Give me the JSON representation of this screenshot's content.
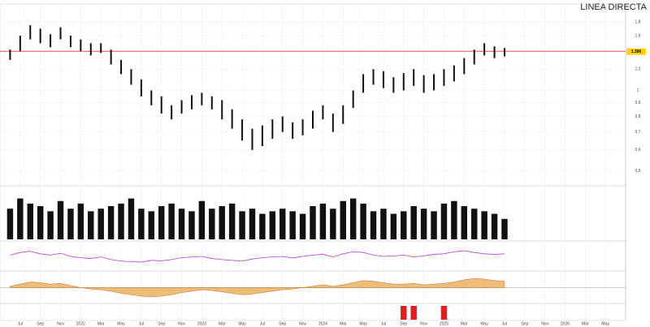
{
  "chart_data": [
    {
      "type": "ohlc",
      "title": "LINEA DIRECTA",
      "log_scale": true,
      "ylim": [
        0.45,
        2.0
      ],
      "yticks": [
        0.5,
        0.6,
        0.7,
        0.8,
        0.9,
        1,
        1.2,
        1.4,
        1.6,
        1.8
      ],
      "xlim": [
        -1,
        61
      ],
      "xticks": [
        {
          "value": 1,
          "label": "Jul"
        },
        {
          "value": 3,
          "label": "Sep"
        },
        {
          "value": 5,
          "label": "Nov"
        },
        {
          "value": 7,
          "label": "2022"
        },
        {
          "value": 9,
          "label": "Mar"
        },
        {
          "value": 11,
          "label": "May"
        },
        {
          "value": 13,
          "label": "Jul"
        },
        {
          "value": 15,
          "label": "Sep"
        },
        {
          "value": 17,
          "label": "Nov"
        },
        {
          "value": 19,
          "label": "2023"
        },
        {
          "value": 21,
          "label": "Mar"
        },
        {
          "value": 23,
          "label": "May"
        },
        {
          "value": 25,
          "label": "Jul"
        },
        {
          "value": 27,
          "label": "Sep"
        },
        {
          "value": 29,
          "label": "Nov"
        },
        {
          "value": 31,
          "label": "2024"
        },
        {
          "value": 33,
          "label": "Mar"
        },
        {
          "value": 35,
          "label": "May"
        },
        {
          "value": 37,
          "label": "Jul"
        },
        {
          "value": 39,
          "label": "Sep"
        },
        {
          "value": 41,
          "label": "Nov"
        },
        {
          "value": 43,
          "label": "2025"
        },
        {
          "value": 45,
          "label": "Mar"
        },
        {
          "value": 47,
          "label": "May"
        },
        {
          "value": 49,
          "label": "Jul"
        },
        {
          "value": 51,
          "label": "Sep"
        },
        {
          "value": 53,
          "label": "Nov"
        },
        {
          "value": 55,
          "label": "2026"
        },
        {
          "value": 57,
          "label": "Mar"
        },
        {
          "value": 59,
          "label": "May"
        }
      ],
      "color": "#111111",
      "hline": 1.4,
      "hline_color": "#e03030",
      "last_price": 1.396,
      "last_price_color": "#ffd400",
      "high": [
        1.42,
        1.6,
        1.75,
        1.7,
        1.62,
        1.72,
        1.6,
        1.55,
        1.5,
        1.5,
        1.42,
        1.3,
        1.2,
        1.1,
        1.0,
        0.95,
        0.88,
        0.92,
        0.96,
        0.98,
        0.95,
        0.92,
        0.85,
        0.78,
        0.72,
        0.74,
        0.78,
        0.8,
        0.76,
        0.78,
        0.84,
        0.88,
        0.82,
        0.88,
        1.0,
        1.15,
        1.2,
        1.18,
        1.12,
        1.16,
        1.2,
        1.14,
        1.15,
        1.2,
        1.24,
        1.32,
        1.42,
        1.5,
        1.46,
        1.44
      ],
      "low": [
        1.3,
        1.4,
        1.55,
        1.5,
        1.45,
        1.55,
        1.45,
        1.4,
        1.35,
        1.38,
        1.25,
        1.15,
        1.05,
        0.95,
        0.88,
        0.82,
        0.78,
        0.82,
        0.85,
        0.88,
        0.85,
        0.78,
        0.72,
        0.65,
        0.6,
        0.62,
        0.66,
        0.7,
        0.66,
        0.68,
        0.72,
        0.78,
        0.7,
        0.75,
        0.86,
        0.98,
        1.05,
        1.02,
        0.98,
        1.0,
        1.04,
        0.98,
        1.0,
        1.04,
        1.08,
        1.15,
        1.25,
        1.35,
        1.32,
        1.34
      ]
    },
    {
      "type": "bar",
      "color": "#111111",
      "ylim": [
        0,
        100
      ],
      "values": [
        60,
        80,
        70,
        65,
        55,
        75,
        60,
        70,
        55,
        60,
        65,
        70,
        80,
        60,
        55,
        65,
        70,
        60,
        55,
        75,
        60,
        65,
        70,
        55,
        60,
        50,
        55,
        60,
        55,
        50,
        65,
        70,
        60,
        75,
        80,
        70,
        55,
        60,
        50,
        55,
        65,
        60,
        55,
        70,
        75,
        65,
        60,
        55,
        50,
        40
      ]
    },
    {
      "type": "line",
      "color": "#b040d0",
      "ylim": [
        0,
        100
      ],
      "values": [
        55,
        65,
        70,
        60,
        55,
        62,
        50,
        45,
        42,
        48,
        38,
        32,
        30,
        28,
        35,
        33,
        38,
        45,
        48,
        50,
        42,
        38,
        35,
        32,
        40,
        45,
        48,
        50,
        44,
        50,
        55,
        58,
        48,
        60,
        68,
        65,
        55,
        50,
        52,
        55,
        48,
        52,
        58,
        60,
        68,
        72,
        65,
        60,
        58,
        60
      ]
    },
    {
      "type": "area",
      "color": "#e8a040",
      "ylim": [
        -0.2,
        0.2
      ],
      "values": [
        0.02,
        0.05,
        0.08,
        0.07,
        0.05,
        0.06,
        0.03,
        0,
        -0.02,
        -0.03,
        -0.05,
        -0.08,
        -0.1,
        -0.12,
        -0.13,
        -0.12,
        -0.1,
        -0.07,
        -0.05,
        -0.03,
        -0.04,
        -0.06,
        -0.08,
        -0.1,
        -0.09,
        -0.07,
        -0.05,
        -0.03,
        -0.02,
        0,
        0.02,
        0.04,
        0.02,
        0.04,
        0.07,
        0.1,
        0.09,
        0.07,
        0.05,
        0.05,
        0.06,
        0.04,
        0.05,
        0.06,
        0.08,
        0.11,
        0.13,
        0.12,
        0.1,
        0.09
      ]
    },
    {
      "type": "bar",
      "color": "#e02020",
      "ylim": [
        0,
        1
      ],
      "values": [
        0,
        0,
        0,
        0,
        0,
        0,
        0,
        0,
        0,
        0,
        0,
        0,
        0,
        0,
        0,
        0,
        0,
        0,
        0,
        0,
        0,
        0,
        0,
        0,
        0,
        0,
        0,
        0,
        0,
        0,
        0,
        0,
        0,
        0,
        0,
        0,
        0,
        0,
        0,
        1,
        1,
        0,
        0,
        1,
        0,
        0,
        0,
        0,
        0,
        0
      ]
    }
  ]
}
